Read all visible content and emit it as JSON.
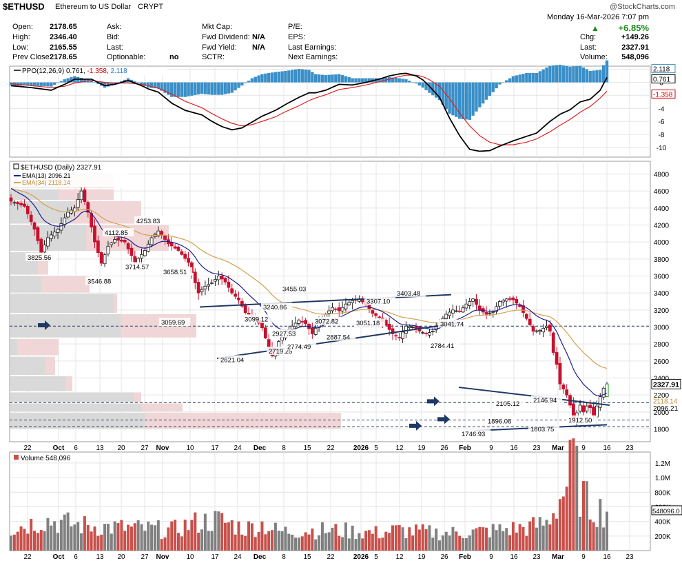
{
  "header": {
    "symbol": "$ETHUSD",
    "name": "Ethereum to US Dollar",
    "exchange": "CRYPT",
    "watermark": "@StockCharts.com",
    "datetime": "Monday  16-Mar-2026  7:07 pm",
    "change_pct": "+6.85%",
    "stats_col1": [
      {
        "label": "Open:",
        "value": "2178.65"
      },
      {
        "label": "High:",
        "value": "2346.40"
      },
      {
        "label": "Low:",
        "value": "2165.55"
      },
      {
        "label": "Prev Close:",
        "value": "2178.65"
      }
    ],
    "stats_col2": [
      {
        "label": "Ask:",
        "value": ""
      },
      {
        "label": "Bid:",
        "value": ""
      },
      {
        "label": "Last:",
        "value": ""
      },
      {
        "label": "Optionable:",
        "value": "no"
      }
    ],
    "stats_col3": [
      {
        "label": "Mkt Cap:",
        "value": ""
      },
      {
        "label": "Fwd Dividend:",
        "value": "N/A"
      },
      {
        "label": "Fwd Yield:",
        "value": "N/A"
      },
      {
        "label": "SCTR:",
        "value": ""
      }
    ],
    "stats_col4": [
      {
        "label": "P/E:",
        "value": ""
      },
      {
        "label": "EPS:",
        "value": ""
      },
      {
        "label": "Last Earnings:",
        "value": ""
      },
      {
        "label": "Next Earnings:",
        "value": ""
      }
    ],
    "stats_col5": [
      {
        "label": "Chg:",
        "value": "+149.26"
      },
      {
        "label": "Last:",
        "value": "2327.91"
      },
      {
        "label": "Volume:",
        "value": "548,096"
      }
    ]
  },
  "chart_data": [
    {
      "type": "line",
      "title": "PPO(12,26,9)",
      "legend_values": [
        "0.761",
        "-1.358",
        "2.118"
      ],
      "colors": {
        "ppo": "#000000",
        "signal": "#e02020",
        "hist": "#3a8fc8"
      },
      "ylim": [
        -11.5,
        2.5
      ],
      "ticks": [
        2,
        0,
        -2,
        -4,
        -6,
        -8,
        -10
      ],
      "right_labels": [
        "2.118",
        "0.761",
        "-1.358"
      ],
      "ppo_anchors": [
        [
          0,
          -0.5
        ],
        [
          6,
          -0.8
        ],
        [
          12,
          -1.2
        ],
        [
          16,
          -0.3
        ],
        [
          19,
          0.5
        ],
        [
          24,
          0.5
        ],
        [
          28,
          -0.5
        ],
        [
          31,
          -0.3
        ],
        [
          35,
          0.3
        ],
        [
          39,
          -0.5
        ],
        [
          41,
          -1.0
        ],
        [
          44,
          -1.5
        ],
        [
          48,
          -3.2
        ],
        [
          52,
          -4.3
        ],
        [
          57,
          -5.0
        ],
        [
          60,
          -6.0
        ],
        [
          63,
          -6.8
        ],
        [
          66,
          -7.3
        ],
        [
          69,
          -7.0
        ],
        [
          72,
          -6.1
        ],
        [
          75,
          -5.2
        ],
        [
          79,
          -4.3
        ],
        [
          82,
          -3.4
        ],
        [
          86,
          -2.3
        ],
        [
          89,
          -1.6
        ],
        [
          91,
          -1.6
        ],
        [
          94,
          -1.2
        ],
        [
          98,
          -0.3
        ],
        [
          102,
          -0.4
        ],
        [
          106,
          0.0
        ],
        [
          110,
          0.5
        ],
        [
          113,
          1.0
        ],
        [
          116,
          1.3
        ],
        [
          118,
          1.4
        ],
        [
          121,
          1.0
        ],
        [
          123,
          0.4
        ],
        [
          125,
          -0.6
        ],
        [
          128,
          -2.3
        ],
        [
          131,
          -5.5
        ],
        [
          134,
          -8.2
        ],
        [
          137,
          -10.3
        ],
        [
          140,
          -10.6
        ],
        [
          143,
          -10.5
        ],
        [
          146,
          -9.8
        ],
        [
          150,
          -9.0
        ],
        [
          154,
          -8.3
        ],
        [
          157,
          -7.8
        ],
        [
          161,
          -6.0
        ],
        [
          164,
          -4.9
        ],
        [
          167,
          -4.2
        ],
        [
          170,
          -3.0
        ],
        [
          173,
          -2.6
        ],
        [
          176,
          -1.2
        ],
        [
          178,
          0.761
        ]
      ],
      "signal_anchors": [
        [
          0,
          -0.2
        ],
        [
          6,
          -0.5
        ],
        [
          12,
          -0.8
        ],
        [
          16,
          -0.6
        ],
        [
          19,
          -0.1
        ],
        [
          24,
          0.3
        ],
        [
          28,
          0.0
        ],
        [
          31,
          -0.1
        ],
        [
          35,
          -0.1
        ],
        [
          39,
          -0.3
        ],
        [
          41,
          -0.5
        ],
        [
          44,
          -0.9
        ],
        [
          48,
          -1.8
        ],
        [
          52,
          -2.9
        ],
        [
          57,
          -3.9
        ],
        [
          60,
          -4.8
        ],
        [
          63,
          -5.6
        ],
        [
          66,
          -6.3
        ],
        [
          69,
          -6.7
        ],
        [
          72,
          -6.5
        ],
        [
          75,
          -6.0
        ],
        [
          79,
          -5.3
        ],
        [
          82,
          -4.5
        ],
        [
          86,
          -3.6
        ],
        [
          89,
          -2.8
        ],
        [
          91,
          -2.4
        ],
        [
          94,
          -1.9
        ],
        [
          98,
          -1.1
        ],
        [
          102,
          -0.8
        ],
        [
          106,
          -0.4
        ],
        [
          110,
          0.1
        ],
        [
          113,
          0.5
        ],
        [
          116,
          0.9
        ],
        [
          118,
          1.1
        ],
        [
          121,
          1.1
        ],
        [
          123,
          0.9
        ],
        [
          125,
          0.4
        ],
        [
          128,
          -0.6
        ],
        [
          131,
          -2.5
        ],
        [
          134,
          -4.7
        ],
        [
          137,
          -6.7
        ],
        [
          140,
          -8.2
        ],
        [
          143,
          -9.2
        ],
        [
          146,
          -9.6
        ],
        [
          150,
          -9.6
        ],
        [
          154,
          -9.2
        ],
        [
          157,
          -8.7
        ],
        [
          161,
          -7.6
        ],
        [
          164,
          -6.6
        ],
        [
          167,
          -5.7
        ],
        [
          170,
          -4.6
        ],
        [
          173,
          -3.7
        ],
        [
          176,
          -2.4
        ],
        [
          178,
          -1.358
        ]
      ]
    },
    {
      "type": "candlestick",
      "title": "$ETHUSD (Daily) 2327.91",
      "legend": [
        {
          "label": "EMA(13) 2096.21",
          "color": "#1e1e8c"
        },
        {
          "label": "EMA(34) 2118.14",
          "color": "#d4a050"
        }
      ],
      "ylim": [
        1650,
        4950
      ],
      "ticks": [
        4800,
        4600,
        4400,
        4200,
        4000,
        3800,
        3600,
        3400,
        3200,
        3000,
        2800,
        2600,
        2400,
        2200,
        2000,
        1800
      ],
      "last_price": "2327.91",
      "right_labels": [
        "2118.14",
        "2096.21"
      ],
      "bar_count": 179,
      "close_anchors": [
        [
          0,
          4480
        ],
        [
          4,
          4420
        ],
        [
          7,
          4150
        ],
        [
          9,
          3880
        ],
        [
          11,
          4050
        ],
        [
          14,
          4150
        ],
        [
          17,
          4350
        ],
        [
          19,
          4400
        ],
        [
          21,
          4600
        ],
        [
          23,
          4350
        ],
        [
          25,
          4000
        ],
        [
          27,
          3750
        ],
        [
          29,
          3950
        ],
        [
          31,
          4030
        ],
        [
          34,
          4000
        ],
        [
          37,
          3760
        ],
        [
          40,
          3900
        ],
        [
          42,
          4050
        ],
        [
          44,
          4130
        ],
        [
          47,
          3980
        ],
        [
          50,
          3900
        ],
        [
          53,
          3760
        ],
        [
          56,
          3400
        ],
        [
          58,
          3480
        ],
        [
          60,
          3520
        ],
        [
          62,
          3600
        ],
        [
          64,
          3530
        ],
        [
          66,
          3400
        ],
        [
          68,
          3320
        ],
        [
          70,
          3170
        ],
        [
          73,
          3100
        ],
        [
          75,
          2990
        ],
        [
          77,
          2750
        ],
        [
          78,
          2660
        ],
        [
          80,
          2830
        ],
        [
          82,
          2930
        ],
        [
          84,
          3010
        ],
        [
          86,
          3080
        ],
        [
          88,
          3040
        ],
        [
          90,
          2920
        ],
        [
          92,
          3050
        ],
        [
          94,
          3150
        ],
        [
          96,
          3230
        ],
        [
          98,
          3190
        ],
        [
          100,
          3270
        ],
        [
          102,
          3310
        ],
        [
          104,
          3330
        ],
        [
          106,
          3260
        ],
        [
          108,
          3160
        ],
        [
          110,
          3110
        ],
        [
          112,
          3020
        ],
        [
          114,
          2920
        ],
        [
          116,
          2870
        ],
        [
          118,
          3010
        ],
        [
          120,
          3000
        ],
        [
          122,
          2950
        ],
        [
          124,
          2920
        ],
        [
          126,
          2950
        ],
        [
          128,
          3050
        ],
        [
          130,
          3150
        ],
        [
          132,
          3200
        ],
        [
          134,
          3180
        ],
        [
          136,
          3270
        ],
        [
          138,
          3330
        ],
        [
          140,
          3200
        ],
        [
          142,
          3150
        ],
        [
          144,
          3180
        ],
        [
          146,
          3300
        ],
        [
          148,
          3330
        ],
        [
          150,
          3320
        ],
        [
          152,
          3240
        ],
        [
          154,
          3100
        ],
        [
          156,
          2950
        ],
        [
          158,
          2960
        ],
        [
          160,
          3010
        ],
        [
          161,
          2950
        ],
        [
          162,
          2700
        ],
        [
          163,
          2560
        ],
        [
          164,
          2330
        ],
        [
          165,
          2270
        ],
        [
          166,
          2200
        ],
        [
          167,
          2080
        ],
        [
          168,
          1900
        ],
        [
          169,
          1990
        ],
        [
          170,
          2080
        ],
        [
          171,
          2000
        ],
        [
          172,
          2070
        ],
        [
          173,
          2050
        ],
        [
          174,
          1960
        ],
        [
          175,
          2070
        ],
        [
          176,
          2180
        ],
        [
          177,
          2280
        ],
        [
          178,
          2327.91
        ]
      ],
      "annotations": [
        "3825.56",
        "3546.88",
        "4112.85",
        "4253.83",
        "3714.57",
        "3658.51",
        "3059.69",
        "2621.04",
        "2719.25",
        "3240.86",
        "3099.12",
        "3455.03",
        "2927.53",
        "2774.49",
        "3072.82",
        "2887.54",
        "3307.10",
        "3403.48",
        "3051.18",
        "3041.74",
        "2784.41",
        "1746.93",
        "1896.08",
        "2105.12",
        "2146.94",
        "1803.75",
        "1912.50"
      ],
      "x_labels": [
        "22",
        "Oct",
        "6",
        "13",
        "20",
        "27",
        "Nov",
        "10",
        "17",
        "24",
        "Dec",
        "8",
        "15",
        "22",
        "2026",
        "5",
        "12",
        "19",
        "26",
        "Feb",
        "9",
        "16",
        "23",
        "Mar",
        "9",
        "16",
        "23"
      ]
    },
    {
      "type": "bar",
      "title": "Volume 548,096",
      "ylim": [
        0,
        1350000
      ],
      "ticks": [
        "1.2M",
        "1.0M",
        "800K",
        "600K",
        "400K",
        "200K"
      ],
      "tick_values": [
        1200000,
        1000000,
        800000,
        600000,
        400000,
        200000
      ],
      "last_label": "548096.0",
      "colors": {
        "up": "#808080",
        "down": "#c8504a"
      },
      "vol_anchors": [
        [
          0,
          300000
        ],
        [
          10,
          420000
        ],
        [
          20,
          350000
        ],
        [
          30,
          320000
        ],
        [
          40,
          300000
        ],
        [
          48,
          280000
        ],
        [
          55,
          380000
        ],
        [
          62,
          420000
        ],
        [
          70,
          300000
        ],
        [
          75,
          360000
        ],
        [
          80,
          260000
        ],
        [
          90,
          280000
        ],
        [
          100,
          270000
        ],
        [
          110,
          240000
        ],
        [
          115,
          280000
        ],
        [
          120,
          260000
        ],
        [
          130,
          240000
        ],
        [
          140,
          260000
        ],
        [
          150,
          300000
        ],
        [
          155,
          320000
        ],
        [
          160,
          380000
        ],
        [
          163,
          620000
        ],
        [
          166,
          900000
        ],
        [
          168,
          1270000
        ],
        [
          170,
          800000
        ],
        [
          173,
          600000
        ],
        [
          176,
          560000
        ],
        [
          178,
          548096
        ]
      ]
    }
  ]
}
